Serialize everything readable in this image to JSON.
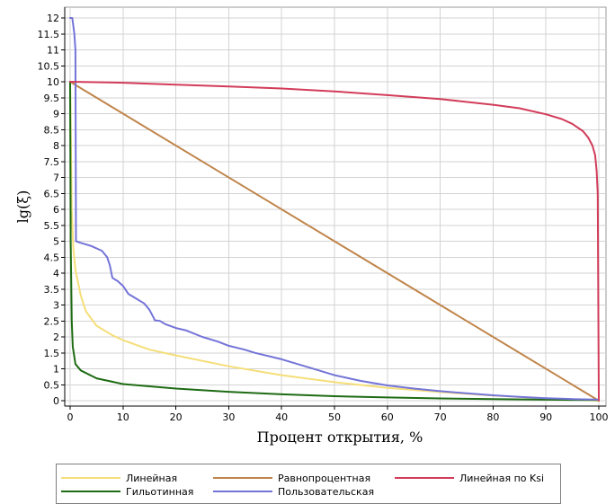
{
  "chart_data": {
    "type": "line",
    "xlabel": "Процент открытия, %",
    "ylabel": "lg(ξ)",
    "xlim": [
      0,
      100
    ],
    "ylim": [
      0,
      12
    ],
    "x_ticks": [
      0,
      10,
      20,
      30,
      40,
      50,
      60,
      70,
      80,
      90,
      100
    ],
    "y_ticks": [
      0,
      0.5,
      1,
      1.5,
      2,
      2.5,
      3,
      3.5,
      4,
      4.5,
      5,
      5.5,
      6,
      6.5,
      7,
      7.5,
      8,
      8.5,
      9,
      9.5,
      10,
      10.5,
      11,
      11.5,
      12
    ],
    "y_tick_labels": [
      "0",
      "0.5",
      "1",
      "1.5",
      "2",
      "2.5",
      "3",
      "3.5",
      "4",
      "4.5",
      "5",
      "5.5",
      "6",
      "6.5",
      "7",
      "7.5",
      "8",
      "8.5",
      "9",
      "9.5",
      "10",
      "10.5",
      "11",
      "11.5",
      "12"
    ],
    "grid": true,
    "legend_position": "bottom",
    "series": [
      {
        "name": "Линейная",
        "color": "#f5de79",
        "x": [
          0,
          0.3,
          0.6,
          1,
          2,
          3,
          5,
          8,
          10,
          15,
          20,
          30,
          40,
          50,
          60,
          70,
          80,
          90,
          100
        ],
        "y": [
          10,
          6,
          4.8,
          4.1,
          3.3,
          2.8,
          2.35,
          2.05,
          1.9,
          1.6,
          1.42,
          1.08,
          0.8,
          0.58,
          0.4,
          0.27,
          0.16,
          0.07,
          0
        ]
      },
      {
        "name": "Гильотинная",
        "color": "#1e6b14",
        "x": [
          0,
          0.1,
          0.3,
          0.5,
          1,
          2,
          5,
          10,
          20,
          30,
          40,
          50,
          60,
          70,
          80,
          90,
          100
        ],
        "y": [
          10,
          5,
          2.5,
          1.7,
          1.15,
          0.95,
          0.7,
          0.52,
          0.38,
          0.28,
          0.2,
          0.14,
          0.1,
          0.07,
          0.05,
          0.03,
          0.02
        ]
      },
      {
        "name": "Равнопроцентная",
        "color": "#c0854b",
        "x": [
          0,
          100
        ],
        "y": [
          10,
          0
        ]
      },
      {
        "name": "Пользовательская",
        "color": "#7474d8",
        "x": [
          0,
          0.4,
          0.8,
          1,
          1.1,
          2,
          4,
          6,
          7,
          7.5,
          8,
          9,
          10,
          11,
          12,
          13,
          14,
          15,
          15.8,
          16,
          17,
          18,
          20,
          22,
          25,
          28,
          30,
          33,
          35,
          40,
          45,
          50,
          55,
          60,
          65,
          70,
          75,
          80,
          85,
          90,
          95,
          100
        ],
        "y": [
          12,
          12,
          11.5,
          11,
          5,
          4.95,
          4.85,
          4.7,
          4.5,
          4.25,
          3.85,
          3.75,
          3.6,
          3.35,
          3.25,
          3.15,
          3.05,
          2.85,
          2.6,
          2.52,
          2.5,
          2.4,
          2.28,
          2.2,
          2.0,
          1.85,
          1.72,
          1.6,
          1.5,
          1.3,
          1.05,
          0.8,
          0.62,
          0.48,
          0.38,
          0.3,
          0.23,
          0.17,
          0.12,
          0.08,
          0.05,
          0.03
        ]
      },
      {
        "name": "Линейная по Ksi",
        "color": "#d23c5a",
        "x": [
          0,
          10,
          20,
          30,
          40,
          50,
          60,
          70,
          80,
          85,
          90,
          93,
          95,
          97,
          98,
          98.8,
          99.3,
          99.6,
          99.8,
          100
        ],
        "y": [
          10,
          9.97,
          9.91,
          9.85,
          9.79,
          9.7,
          9.58,
          9.46,
          9.28,
          9.17,
          8.98,
          8.83,
          8.68,
          8.45,
          8.25,
          8.0,
          7.7,
          7.2,
          6.5,
          0
        ]
      }
    ]
  }
}
